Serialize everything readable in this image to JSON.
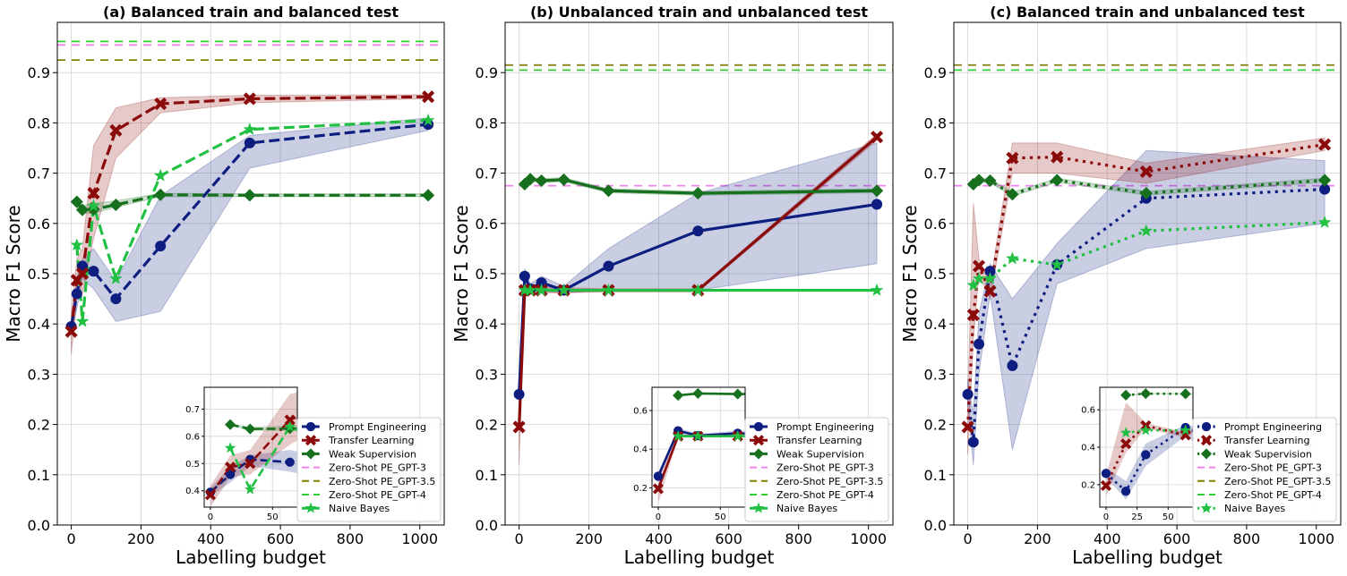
{
  "chart_data": [
    {
      "type": "line",
      "title": "(a) Balanced train and balanced test",
      "xlabel": "Labelling budget",
      "ylabel": "Macro F1 Score",
      "xlim": [
        -40,
        1070
      ],
      "ylim": [
        0,
        1.0
      ],
      "xticks": [
        0,
        200,
        400,
        600,
        800,
        1000
      ],
      "yticks": [
        0,
        0.1,
        0.2,
        0.3,
        0.4,
        0.5,
        0.6,
        0.7,
        0.8,
        0.9
      ],
      "grid": true,
      "line_style": "dashed",
      "legend": "lower-right",
      "series": [
        {
          "name": "Prompt Engineering",
          "color": "#0d1e80",
          "marker": "circle",
          "x": [
            0,
            16,
            32,
            64,
            128,
            256,
            512,
            1024
          ],
          "y": [
            0.395,
            0.46,
            0.515,
            0.505,
            0.45,
            0.555,
            0.76,
            0.797
          ],
          "lo": [
            0.38,
            0.43,
            0.49,
            0.47,
            0.405,
            0.425,
            0.71,
            0.785
          ],
          "hi": [
            0.41,
            0.49,
            0.53,
            0.55,
            0.485,
            0.655,
            0.775,
            0.81
          ]
        },
        {
          "name": "Transfer Learning",
          "color": "#8b0a0a",
          "marker": "x",
          "x": [
            0,
            16,
            32,
            64,
            128,
            256,
            512,
            1024
          ],
          "y": [
            0.385,
            0.487,
            0.5,
            0.66,
            0.785,
            0.838,
            0.848,
            0.852
          ],
          "lo": [
            0.34,
            0.45,
            0.46,
            0.57,
            0.73,
            0.82,
            0.84,
            0.848
          ],
          "hi": [
            0.42,
            0.53,
            0.55,
            0.755,
            0.83,
            0.85,
            0.855,
            0.856
          ]
        },
        {
          "name": "Weak Supervision",
          "color": "#17701e",
          "marker": "diamond",
          "x": [
            16,
            32,
            64,
            128,
            256,
            512,
            1024
          ],
          "y": [
            0.643,
            0.627,
            0.628,
            0.637,
            0.657,
            0.656,
            0.656
          ],
          "lo": [
            0.638,
            0.62,
            0.62,
            0.632,
            0.653,
            0.653,
            0.653
          ],
          "hi": [
            0.648,
            0.635,
            0.64,
            0.645,
            0.66,
            0.659,
            0.659
          ]
        },
        {
          "name": "Naive Bayes",
          "color": "#21c043",
          "marker": "star",
          "x": [
            16,
            32,
            64,
            128,
            256,
            512,
            1024
          ],
          "y": [
            0.557,
            0.405,
            0.635,
            0.49,
            0.695,
            0.787,
            0.805
          ]
        }
      ],
      "reference_lines": [
        {
          "name": "Zero-Shot PE_GPT-3",
          "color": "#ee82ee",
          "y": 0.955
        },
        {
          "name": "Zero-Shot PE_GPT-3.5",
          "color": "#808000",
          "y": 0.925
        },
        {
          "name": "Zero-Shot PE_GPT-4",
          "color": "#32cd32",
          "y": 0.962
        }
      ],
      "inset": {
        "xlim": [
          -5,
          70
        ],
        "ylim": [
          0.34,
          0.78
        ],
        "xticks": [
          0,
          50
        ],
        "yticks": [
          0.4,
          0.5,
          0.6,
          0.7
        ]
      }
    },
    {
      "type": "line",
      "title": "(b) Unbalanced train and unbalanced test",
      "xlabel": "Labelling budget",
      "ylabel": "Macro F1 Score",
      "xlim": [
        -40,
        1070
      ],
      "ylim": [
        0,
        1.0
      ],
      "xticks": [
        0,
        200,
        400,
        600,
        800,
        1000
      ],
      "yticks": [
        0,
        0.1,
        0.2,
        0.3,
        0.4,
        0.5,
        0.6,
        0.7,
        0.8,
        0.9
      ],
      "grid": true,
      "line_style": "solid",
      "legend": "lower-right",
      "series": [
        {
          "name": "Prompt Engineering",
          "color": "#0d1e80",
          "marker": "circle",
          "x": [
            0,
            16,
            32,
            64,
            128,
            256,
            512,
            1024
          ],
          "y": [
            0.26,
            0.495,
            0.47,
            0.482,
            0.467,
            0.515,
            0.585,
            0.638
          ],
          "lo": [
            0.24,
            0.48,
            0.46,
            0.465,
            0.462,
            0.467,
            0.467,
            0.52
          ],
          "hi": [
            0.28,
            0.51,
            0.48,
            0.495,
            0.475,
            0.55,
            0.66,
            0.76
          ]
        },
        {
          "name": "Transfer Learning",
          "color": "#8b0a0a",
          "marker": "x",
          "x": [
            0,
            16,
            32,
            64,
            128,
            256,
            512,
            1024
          ],
          "y": [
            0.195,
            0.467,
            0.467,
            0.467,
            0.467,
            0.467,
            0.467,
            0.772
          ],
          "lo": [
            0.12,
            0.46,
            0.46,
            0.462,
            0.462,
            0.464,
            0.464,
            0.765
          ],
          "hi": [
            0.25,
            0.475,
            0.475,
            0.472,
            0.472,
            0.47,
            0.47,
            0.778
          ]
        },
        {
          "name": "Weak Supervision",
          "color": "#17701e",
          "marker": "diamond",
          "x": [
            16,
            32,
            64,
            128,
            256,
            512,
            1024
          ],
          "y": [
            0.678,
            0.688,
            0.685,
            0.687,
            0.665,
            0.66,
            0.665
          ],
          "lo": [
            0.674,
            0.684,
            0.681,
            0.683,
            0.661,
            0.656,
            0.661
          ],
          "hi": [
            0.682,
            0.692,
            0.689,
            0.691,
            0.669,
            0.664,
            0.669
          ]
        },
        {
          "name": "Naive Bayes",
          "color": "#21c043",
          "marker": "star",
          "x": [
            16,
            32,
            64,
            128,
            256,
            512,
            1024
          ],
          "y": [
            0.467,
            0.467,
            0.467,
            0.467,
            0.467,
            0.467,
            0.467
          ]
        }
      ],
      "reference_lines": [
        {
          "name": "Zero-Shot PE_GPT-3",
          "color": "#ee82ee",
          "y": 0.675
        },
        {
          "name": "Zero-Shot PE_GPT-3.5",
          "color": "#808000",
          "y": 0.915
        },
        {
          "name": "Zero-Shot PE_GPT-4",
          "color": "#32cd32",
          "y": 0.905
        }
      ],
      "inset": {
        "xlim": [
          -5,
          70
        ],
        "ylim": [
          0.1,
          0.72
        ],
        "xticks": [
          0,
          50
        ],
        "yticks": [
          0.2,
          0.4,
          0.6
        ]
      }
    },
    {
      "type": "line",
      "title": "(c) Balanced train and unbalanced test",
      "xlabel": "Labelling budget",
      "ylabel": "Macro F1 Score",
      "xlim": [
        -40,
        1070
      ],
      "ylim": [
        0,
        1.0
      ],
      "xticks": [
        0,
        200,
        400,
        600,
        800,
        1000
      ],
      "yticks": [
        0,
        0.1,
        0.2,
        0.3,
        0.4,
        0.5,
        0.6,
        0.7,
        0.8,
        0.9
      ],
      "grid": true,
      "line_style": "dotted",
      "legend": "lower-right",
      "series": [
        {
          "name": "Prompt Engineering",
          "color": "#0d1e80",
          "marker": "circle",
          "x": [
            0,
            16,
            32,
            64,
            128,
            256,
            512,
            1024
          ],
          "y": [
            0.26,
            0.165,
            0.36,
            0.505,
            0.317,
            0.518,
            0.65,
            0.668
          ],
          "lo": [
            0.24,
            0.12,
            0.3,
            0.46,
            0.15,
            0.48,
            0.55,
            0.6
          ],
          "hi": [
            0.29,
            0.22,
            0.42,
            0.52,
            0.45,
            0.56,
            0.745,
            0.725
          ]
        },
        {
          "name": "Transfer Learning",
          "color": "#8b0a0a",
          "marker": "x",
          "x": [
            0,
            16,
            32,
            64,
            128,
            256,
            512,
            1024
          ],
          "y": [
            0.195,
            0.418,
            0.515,
            0.465,
            0.73,
            0.732,
            0.703,
            0.757
          ],
          "lo": [
            0.14,
            0.37,
            0.5,
            0.45,
            0.7,
            0.7,
            0.68,
            0.745
          ],
          "hi": [
            0.25,
            0.64,
            0.53,
            0.48,
            0.76,
            0.76,
            0.72,
            0.77
          ]
        },
        {
          "name": "Weak Supervision",
          "color": "#17701e",
          "marker": "diamond",
          "x": [
            16,
            32,
            64,
            128,
            256,
            512,
            1024
          ],
          "y": [
            0.678,
            0.686,
            0.685,
            0.658,
            0.686,
            0.66,
            0.686
          ],
          "lo": [
            0.674,
            0.682,
            0.681,
            0.654,
            0.682,
            0.656,
            0.682
          ],
          "hi": [
            0.682,
            0.69,
            0.689,
            0.662,
            0.69,
            0.664,
            0.69
          ]
        },
        {
          "name": "Naive Bayes",
          "color": "#21c043",
          "marker": "star",
          "x": [
            16,
            32,
            64,
            128,
            256,
            512,
            1024
          ],
          "y": [
            0.477,
            0.49,
            0.49,
            0.53,
            0.518,
            0.585,
            0.602
          ]
        }
      ],
      "reference_lines": [
        {
          "name": "Zero-Shot PE_GPT-3",
          "color": "#ee82ee",
          "y": 0.675
        },
        {
          "name": "Zero-Shot PE_GPT-3.5",
          "color": "#808000",
          "y": 0.915
        },
        {
          "name": "Zero-Shot PE_GPT-4",
          "color": "#32cd32",
          "y": 0.905
        }
      ],
      "inset": {
        "xlim": [
          -5,
          70
        ],
        "ylim": [
          0.08,
          0.72
        ],
        "xticks": [
          0,
          25,
          50
        ],
        "yticks": [
          0.2,
          0.4,
          0.6
        ]
      }
    }
  ]
}
